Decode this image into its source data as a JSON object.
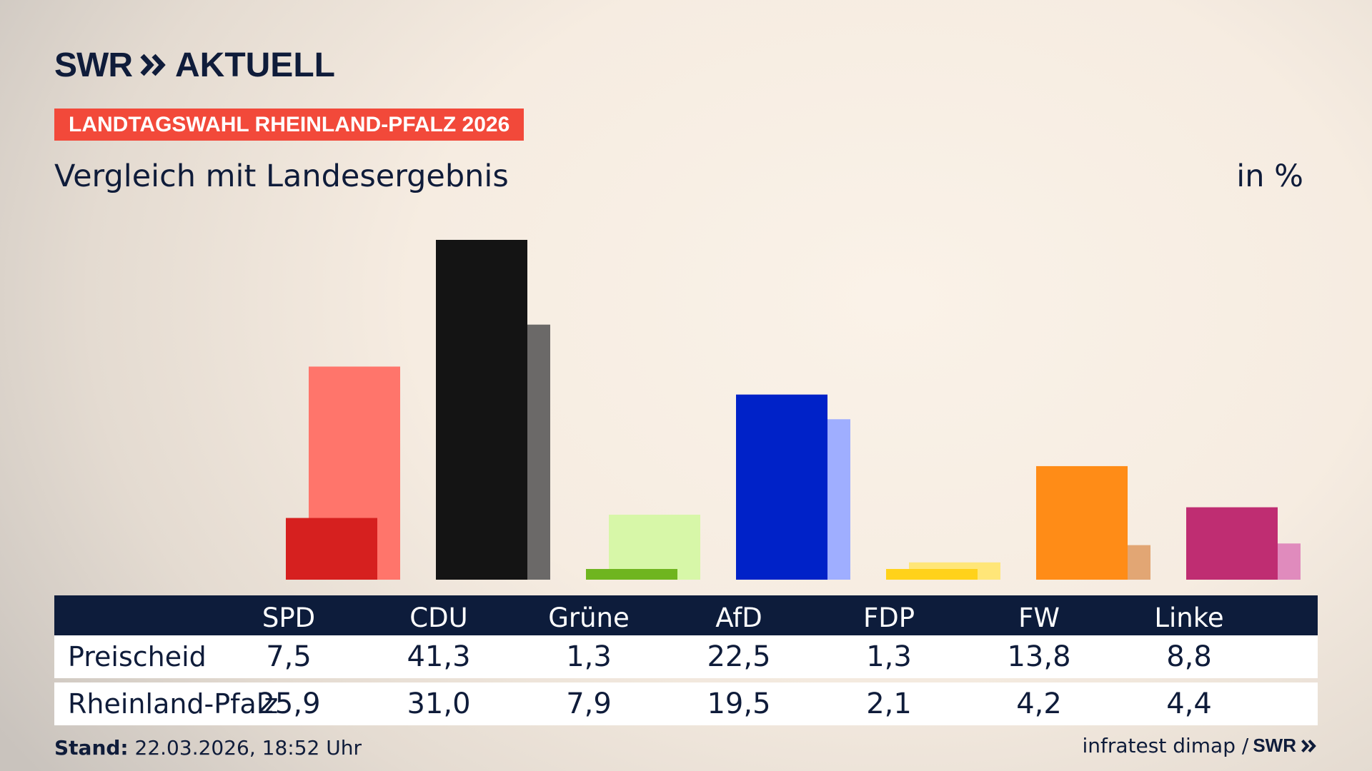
{
  "logo": {
    "brand": "SWR",
    "title": "AKTUELL",
    "icon": "double-chevron-icon"
  },
  "ribbon": {
    "text": "LANDTAGSWAHL RHEINLAND-PFALZ 2026",
    "color": "#f2493a"
  },
  "subtitle": "Vergleich mit Landesergebnis",
  "unit": "in %",
  "table": {
    "row1_label": "Preischeid",
    "row2_label": "Rheinland-Pfalz",
    "parties": [
      "SPD",
      "CDU",
      "Grüne",
      "AfD",
      "FDP",
      "FW",
      "Linke"
    ],
    "row1_values": [
      "7,5",
      "41,3",
      "1,3",
      "22,5",
      "1,3",
      "13,8",
      "8,8"
    ],
    "row2_values": [
      "25,9",
      "31,0",
      "7,9",
      "19,5",
      "2,1",
      "4,2",
      "4,4"
    ]
  },
  "footer": {
    "stand_label": "Stand:",
    "stand_value": "22.03.2026, 18:52 Uhr",
    "source": "infratest dimap /",
    "brand": "SWR"
  },
  "chart_data": {
    "type": "bar",
    "categories": [
      "SPD",
      "CDU",
      "Grüne",
      "AfD",
      "FDP",
      "FW",
      "Linke"
    ],
    "series": [
      {
        "name": "Preischeid",
        "values": [
          7.5,
          41.3,
          1.3,
          22.5,
          1.3,
          13.8,
          8.8
        ],
        "colors": [
          "#d6201f",
          "#141414",
          "#6fb51f",
          "#0022c8",
          "#ffd21a",
          "#ff8c17",
          "#bf2d72"
        ]
      },
      {
        "name": "Rheinland-Pfalz",
        "values": [
          25.9,
          31.0,
          7.9,
          19.5,
          2.1,
          4.2,
          4.4
        ],
        "colors": [
          "#ff756b",
          "#6b6968",
          "#d7f7a8",
          "#9faeff",
          "#ffe678",
          "#e2a674",
          "#e08bbd"
        ]
      }
    ],
    "ylabel": "in %",
    "ylim": [
      0,
      41.3
    ],
    "grid": false,
    "legend": "table-below"
  }
}
